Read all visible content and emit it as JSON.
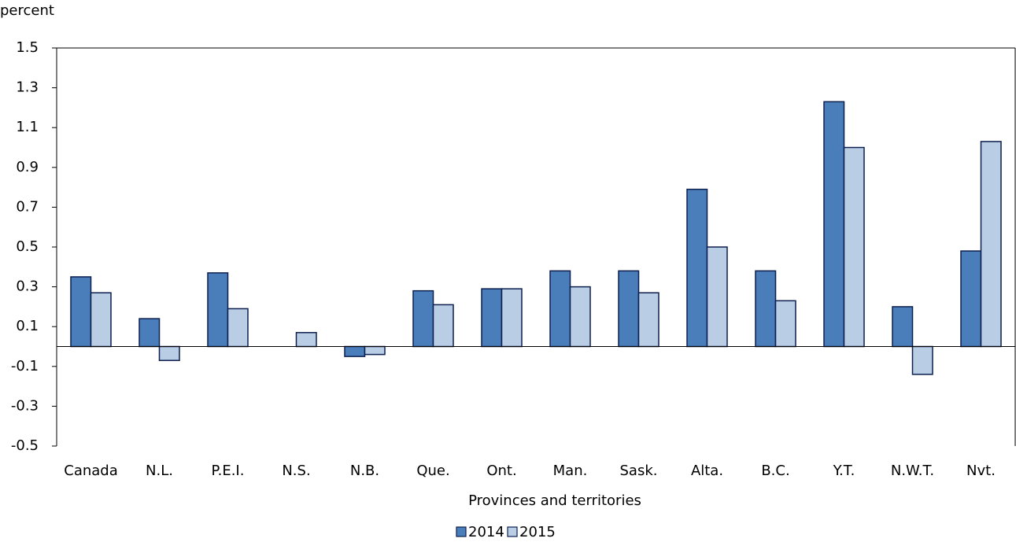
{
  "chart_data": {
    "type": "bar",
    "y_label": "percent",
    "x_label": "Provinces and territories",
    "categories": [
      "Canada",
      "N.L.",
      "P.E.I.",
      "N.S.",
      "N.B.",
      "Que.",
      "Ont.",
      "Man.",
      "Sask.",
      "Alta.",
      "B.C.",
      "Y.T.",
      "N.W.T.",
      "Nvt."
    ],
    "series": [
      {
        "name": "2014",
        "color": "#4a7ebb",
        "values": [
          0.35,
          0.14,
          0.37,
          0,
          -0.05,
          0.28,
          0.29,
          0.38,
          0.38,
          0.79,
          0.38,
          1.23,
          0.2,
          0.48
        ]
      },
      {
        "name": "2015",
        "color": "#b9cde5",
        "values": [
          0.27,
          -0.07,
          0.19,
          0.07,
          -0.04,
          0.21,
          0.29,
          0.3,
          0.27,
          0.5,
          0.23,
          1.0,
          -0.14,
          1.03
        ]
      }
    ],
    "ylim": [
      -0.5,
      1.5
    ],
    "yticks": [
      -0.5,
      -0.3,
      -0.1,
      0.1,
      0.3,
      0.5,
      0.7,
      0.9,
      1.1,
      1.3,
      1.5
    ]
  }
}
